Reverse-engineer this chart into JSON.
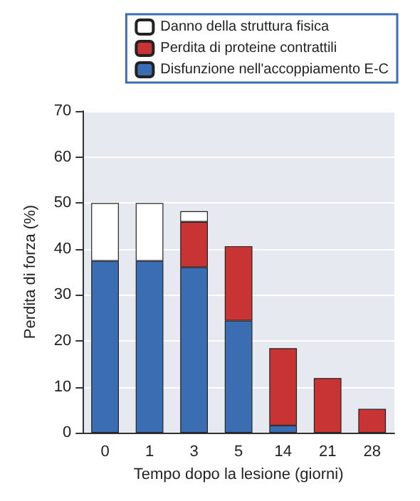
{
  "chart_data": {
    "type": "bar",
    "stacked": true,
    "categories": [
      "0",
      "1",
      "3",
      "5",
      "14",
      "21",
      "28"
    ],
    "xlabel": "Tempo dopo la lesione (giorni)",
    "ylabel": "Perdita di forza (%)",
    "ylim": [
      0,
      70
    ],
    "yticks": [
      0,
      10,
      20,
      30,
      40,
      50,
      60,
      70
    ],
    "grid": "y",
    "legend": "top right",
    "series": [
      {
        "name": "Disfunzione nell'accoppiamento E-C",
        "color": "#3b6db3",
        "values": [
          37.4,
          37.4,
          36.0,
          24.4,
          1.6,
          null,
          null
        ]
      },
      {
        "name": "Perdita di proteine contrattili",
        "color": "#c83333",
        "values": [
          null,
          null,
          9.9,
          16.2,
          16.8,
          11.9,
          5.2
        ]
      },
      {
        "name": "Danno della struttura fisica",
        "color": "#ffffff",
        "values": [
          12.6,
          12.6,
          2.3,
          null,
          null,
          null,
          null
        ]
      }
    ]
  }
}
